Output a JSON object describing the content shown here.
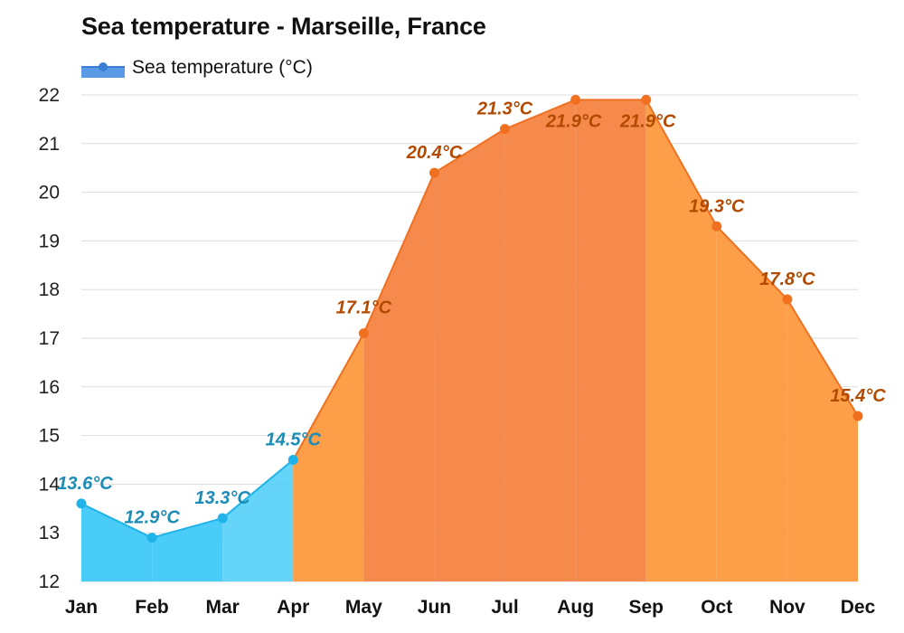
{
  "title": "Sea temperature - Marseille, France",
  "legend": {
    "label": "Sea temperature (°C)",
    "color": "#3a7fd5"
  },
  "colors": {
    "cold_fill": "#49cdf8",
    "cold_line": "#1fb3ea",
    "cold_label": "#1a8cb5",
    "warm_fill": "#fc9f48",
    "hot_fill": "#f68a4c",
    "warm_line": "#f07020",
    "warm_label": "#b24a00",
    "grid": "#dddddd"
  },
  "chart_data": {
    "type": "area",
    "title": "Sea temperature - Marseille, France",
    "xlabel": "",
    "ylabel": "",
    "categories": [
      "Jan",
      "Feb",
      "Mar",
      "Apr",
      "May",
      "Jun",
      "Jul",
      "Aug",
      "Sep",
      "Oct",
      "Nov",
      "Dec"
    ],
    "series": [
      {
        "name": "Sea temperature (°C)",
        "values": [
          13.6,
          12.9,
          13.3,
          14.5,
          17.1,
          20.4,
          21.3,
          21.9,
          21.9,
          19.3,
          17.8,
          15.4
        ],
        "labels": [
          "13.6°C",
          "12.9°C",
          "13.3°C",
          "14.5°C",
          "17.1°C",
          "20.4°C",
          "21.3°C",
          "21.9°C",
          "21.9°C",
          "19.3°C",
          "17.8°C",
          "15.4°C"
        ]
      }
    ],
    "ylim": [
      12,
      22
    ],
    "yticks": [
      12,
      13,
      14,
      15,
      16,
      17,
      18,
      19,
      20,
      21,
      22
    ],
    "grid": true,
    "legend_position": "top-left"
  }
}
